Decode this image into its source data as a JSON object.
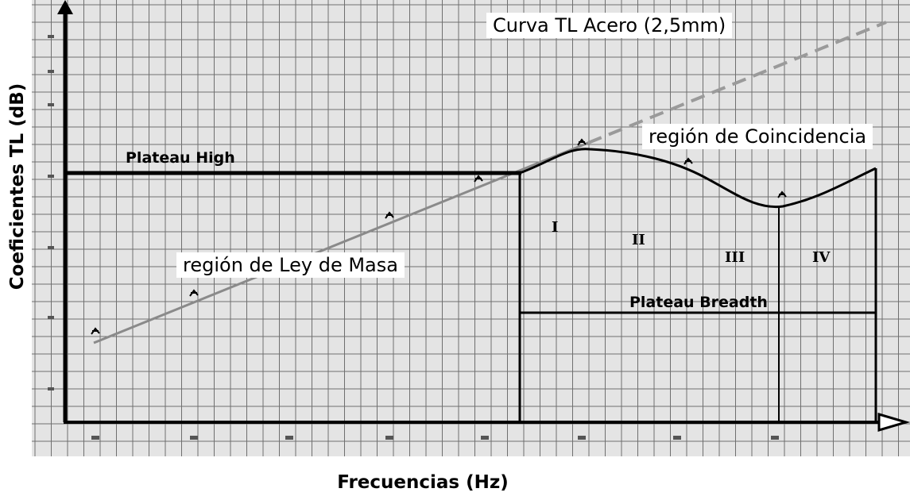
{
  "chart_data": {
    "type": "line",
    "title": "Curva TL Acero (2,5mm)",
    "xlabel": "Frecuencias (Hz)",
    "ylabel": "Coeficientes TL (dB)",
    "grid": true,
    "annotations": {
      "coincidence": "región de Coincidencia",
      "mass_law": "región de Ley de Masa",
      "plateau_high": "Plateau High",
      "plateau_breadth": "Plateau Breadth",
      "regions": [
        "I",
        "II",
        "III",
        "IV"
      ]
    }
  },
  "colors": {
    "background": "#ffffff",
    "paper": "#e4e4e4",
    "grid": "#6f6f6f",
    "ink": "#000000",
    "mass_law_line": "#8a8a8a"
  }
}
